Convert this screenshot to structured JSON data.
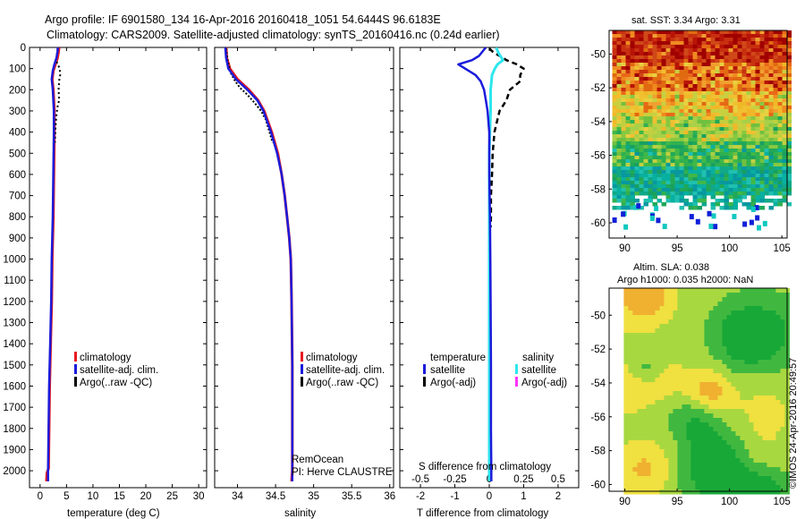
{
  "header": {
    "line1": "Argo profile: IF 6901580_134 16-Apr-2016 20160418_1051 54.6444S 96.6183E",
    "line2": "Climatology: CARS2009. Satellite-adjusted climatology: synTS_20160416.nc (0.24d earlier)"
  },
  "colors": {
    "climatology": "#e8191e",
    "satellite": "#1b1bdb",
    "argo": "#000000",
    "salinity_satellite": "#2ee6ee",
    "salinity_argo": "#ff33ff"
  },
  "chart_data": [
    {
      "type": "line",
      "title": "",
      "xlabel": "temperature (deg C)",
      "ylabel": "",
      "xlim": [
        -2,
        31.5
      ],
      "ylim": [
        2080,
        0
      ],
      "xticks": [
        "0",
        "5",
        "10",
        "15",
        "20",
        "25",
        "30"
      ],
      "yticks": [
        "0",
        "100",
        "200",
        "300",
        "400",
        "500",
        "600",
        "700",
        "800",
        "900",
        "1000",
        "1100",
        "1200",
        "1300",
        "1400",
        "1500",
        "1600",
        "1700",
        "1800",
        "1900",
        "2000"
      ],
      "legend": [
        "climatology",
        "satellite-adj. clim.",
        "Argo(..raw -QC)"
      ],
      "legend_position": "lower-center",
      "series": [
        {
          "name": "climatology",
          "depth": [
            0,
            20,
            50,
            80,
            110,
            150,
            200,
            300,
            400,
            600,
            800,
            1000,
            1200,
            1400,
            1600,
            1800,
            1990,
            2010,
            2050
          ],
          "values": [
            3.6,
            3.5,
            3.3,
            2.9,
            2.5,
            2.3,
            2.5,
            2.7,
            2.7,
            2.6,
            2.5,
            2.3,
            2.2,
            2.0,
            1.8,
            1.7,
            1.6,
            1.3,
            1.2
          ]
        },
        {
          "name": "satellite-adj. clim.",
          "depth": [
            0,
            20,
            50,
            80,
            110,
            150,
            200,
            300,
            400,
            600,
            800,
            1000,
            1200,
            1400,
            1600,
            1800,
            2000,
            2050
          ],
          "values": [
            3.4,
            3.3,
            3.1,
            2.7,
            2.4,
            2.2,
            2.4,
            2.6,
            2.6,
            2.5,
            2.4,
            2.2,
            2.1,
            1.9,
            1.7,
            1.6,
            1.5,
            1.5
          ]
        },
        {
          "name": "Argo(..raw -QC)",
          "depth": [
            5,
            30,
            60,
            100,
            130,
            160,
            200,
            250,
            280,
            320,
            380,
            450
          ],
          "values": [
            3.3,
            3.2,
            3.0,
            3.7,
            3.8,
            3.6,
            3.5,
            3.6,
            3.3,
            3.1,
            2.9,
            2.8
          ]
        }
      ],
      "annotations": []
    },
    {
      "type": "line",
      "title": "",
      "xlabel": "salinity",
      "ylabel": "",
      "xlim": [
        33.7,
        36.05
      ],
      "ylim": [
        2080,
        0
      ],
      "xticks": [
        "34",
        "34.5",
        "35",
        "35.5",
        "36"
      ],
      "legend": [
        "climatology",
        "satellite-adj. clim.",
        "Argo(..raw -QC)"
      ],
      "legend_position": "lower-right",
      "series": [
        {
          "name": "climatology",
          "depth": [
            0,
            50,
            100,
            150,
            200,
            250,
            300,
            400,
            500,
            600,
            700,
            800,
            900,
            1000,
            1200,
            1500,
            1800,
            2000,
            2050
          ],
          "values": [
            33.85,
            33.86,
            33.9,
            34.0,
            34.15,
            34.27,
            34.35,
            34.45,
            34.53,
            34.58,
            34.62,
            34.65,
            34.68,
            34.7,
            34.71,
            34.72,
            34.72,
            34.72,
            34.71
          ]
        },
        {
          "name": "satellite-adj. clim.",
          "depth": [
            0,
            50,
            100,
            150,
            200,
            250,
            300,
            400,
            500,
            600,
            700,
            800,
            900,
            1000,
            1200,
            1500,
            1800,
            2000,
            2050
          ],
          "values": [
            33.84,
            33.85,
            33.88,
            33.98,
            34.13,
            34.26,
            34.34,
            34.44,
            34.52,
            34.58,
            34.62,
            34.65,
            34.68,
            34.7,
            34.71,
            34.72,
            34.72,
            34.72,
            34.72
          ]
        },
        {
          "name": "Argo(..raw -QC)",
          "depth": [
            5,
            60,
            120,
            160,
            190,
            220,
            260,
            300,
            340,
            400,
            450
          ],
          "values": [
            33.85,
            33.87,
            33.91,
            33.97,
            34.03,
            34.12,
            34.22,
            34.31,
            34.37,
            34.42,
            34.46
          ]
        }
      ],
      "annotations": [
        "RemOcean",
        "PI: Herve CLAUSTRE"
      ]
    },
    {
      "type": "line",
      "title": "",
      "xlabel": "T difference from climatology",
      "ylabel": "",
      "xlim": [
        -2.6,
        2.6
      ],
      "ylim": [
        2080,
        0
      ],
      "xticks": [
        "-2",
        "-1",
        "0",
        "1",
        "2"
      ],
      "secondary_xlabel": "S difference from climatology",
      "secondary_xlim": [
        -0.65,
        0.65
      ],
      "secondary_xticks": [
        "-0.5",
        "-0.25",
        "0",
        "0.25",
        "0.5"
      ],
      "legend_groups": [
        "temperature",
        "salinity"
      ],
      "legend": [
        "satellite",
        "Argo(-adj)",
        "satellite",
        "Argo(-adj)"
      ],
      "legend_position": "lower-center",
      "series": [
        {
          "name": "temperature satellite",
          "depth": [
            0,
            40,
            60,
            80,
            100,
            130,
            160,
            200,
            250,
            300,
            400,
            600,
            800,
            1000,
            1200,
            1500,
            1800,
            2000,
            2050
          ],
          "values": [
            -0.1,
            -0.3,
            -0.5,
            -0.9,
            -0.7,
            -0.4,
            -0.25,
            -0.15,
            -0.1,
            -0.05,
            0.0,
            0.0,
            0.02,
            0.03,
            0.04,
            0.05,
            0.05,
            0.06,
            0.06
          ]
        },
        {
          "name": "temperature Argo(-adj)",
          "depth": [
            5,
            20,
            40,
            60,
            80,
            100,
            130,
            160,
            200,
            250,
            300,
            400,
            500,
            600,
            700,
            800,
            850
          ],
          "values": [
            0.0,
            0.1,
            0.3,
            0.5,
            0.8,
            1.0,
            0.9,
            0.9,
            0.6,
            0.5,
            0.3,
            0.15,
            0.1,
            0.08,
            0.05,
            0.05,
            0.04
          ]
        },
        {
          "name": "salinity satellite",
          "depth": [
            0,
            30,
            60,
            80,
            100,
            130,
            200,
            300,
            500,
            800,
            1200,
            1600,
            2000,
            2050
          ],
          "values": [
            0.05,
            0.07,
            0.1,
            0.06,
            0.04,
            0.02,
            0.01,
            0.01,
            0.0,
            0.0,
            0.0,
            0.0,
            0.0,
            0.0
          ]
        },
        {
          "name": "salinity Argo(-adj)",
          "depth": [],
          "values": []
        }
      ]
    },
    {
      "type": "heatmap",
      "title": "sat. SST: 3.34  Argo: 3.31",
      "xlabel": "",
      "ylabel": "",
      "xlim": [
        88.5,
        105.5
      ],
      "ylim": [
        -60.9,
        -48.6
      ],
      "xticks": [
        "90",
        "95",
        "100",
        "105"
      ],
      "yticks": [
        "-50",
        "-52",
        "-54",
        "-56",
        "-58",
        "-60"
      ],
      "bands": [
        {
          "from": -48.6,
          "to": -50.5,
          "value": "dark red"
        },
        {
          "from": -50.5,
          "to": -52.0,
          "value": "orange"
        },
        {
          "from": -52.0,
          "to": -53.5,
          "value": "yellow"
        },
        {
          "from": -53.5,
          "to": -55.0,
          "value": "yellow-green"
        },
        {
          "from": -55.0,
          "to": -56.6,
          "value": "green"
        },
        {
          "from": -56.6,
          "to": -58.5,
          "value": "teal / cyan"
        },
        {
          "from": -58.5,
          "to": -60.9,
          "value": "no data"
        }
      ]
    },
    {
      "type": "heatmap",
      "title": "Altim. SLA: 0.038",
      "subtitle": "Argo h1000: 0.035  h2000: NaN",
      "xlabel": "",
      "ylabel": "",
      "xlim": [
        88.5,
        105.5
      ],
      "ylim": [
        -60.4,
        -48.4
      ],
      "xticks": [
        "90",
        "95",
        "100",
        "105"
      ],
      "yticks": [
        "-50",
        "-52",
        "-54",
        "-56",
        "-58",
        "-60"
      ],
      "dominant_values": [
        "green",
        "yellow",
        "orange"
      ]
    }
  ],
  "footer": {
    "stamp": "©IMOS 24-Apr-2016 20:49:57"
  }
}
